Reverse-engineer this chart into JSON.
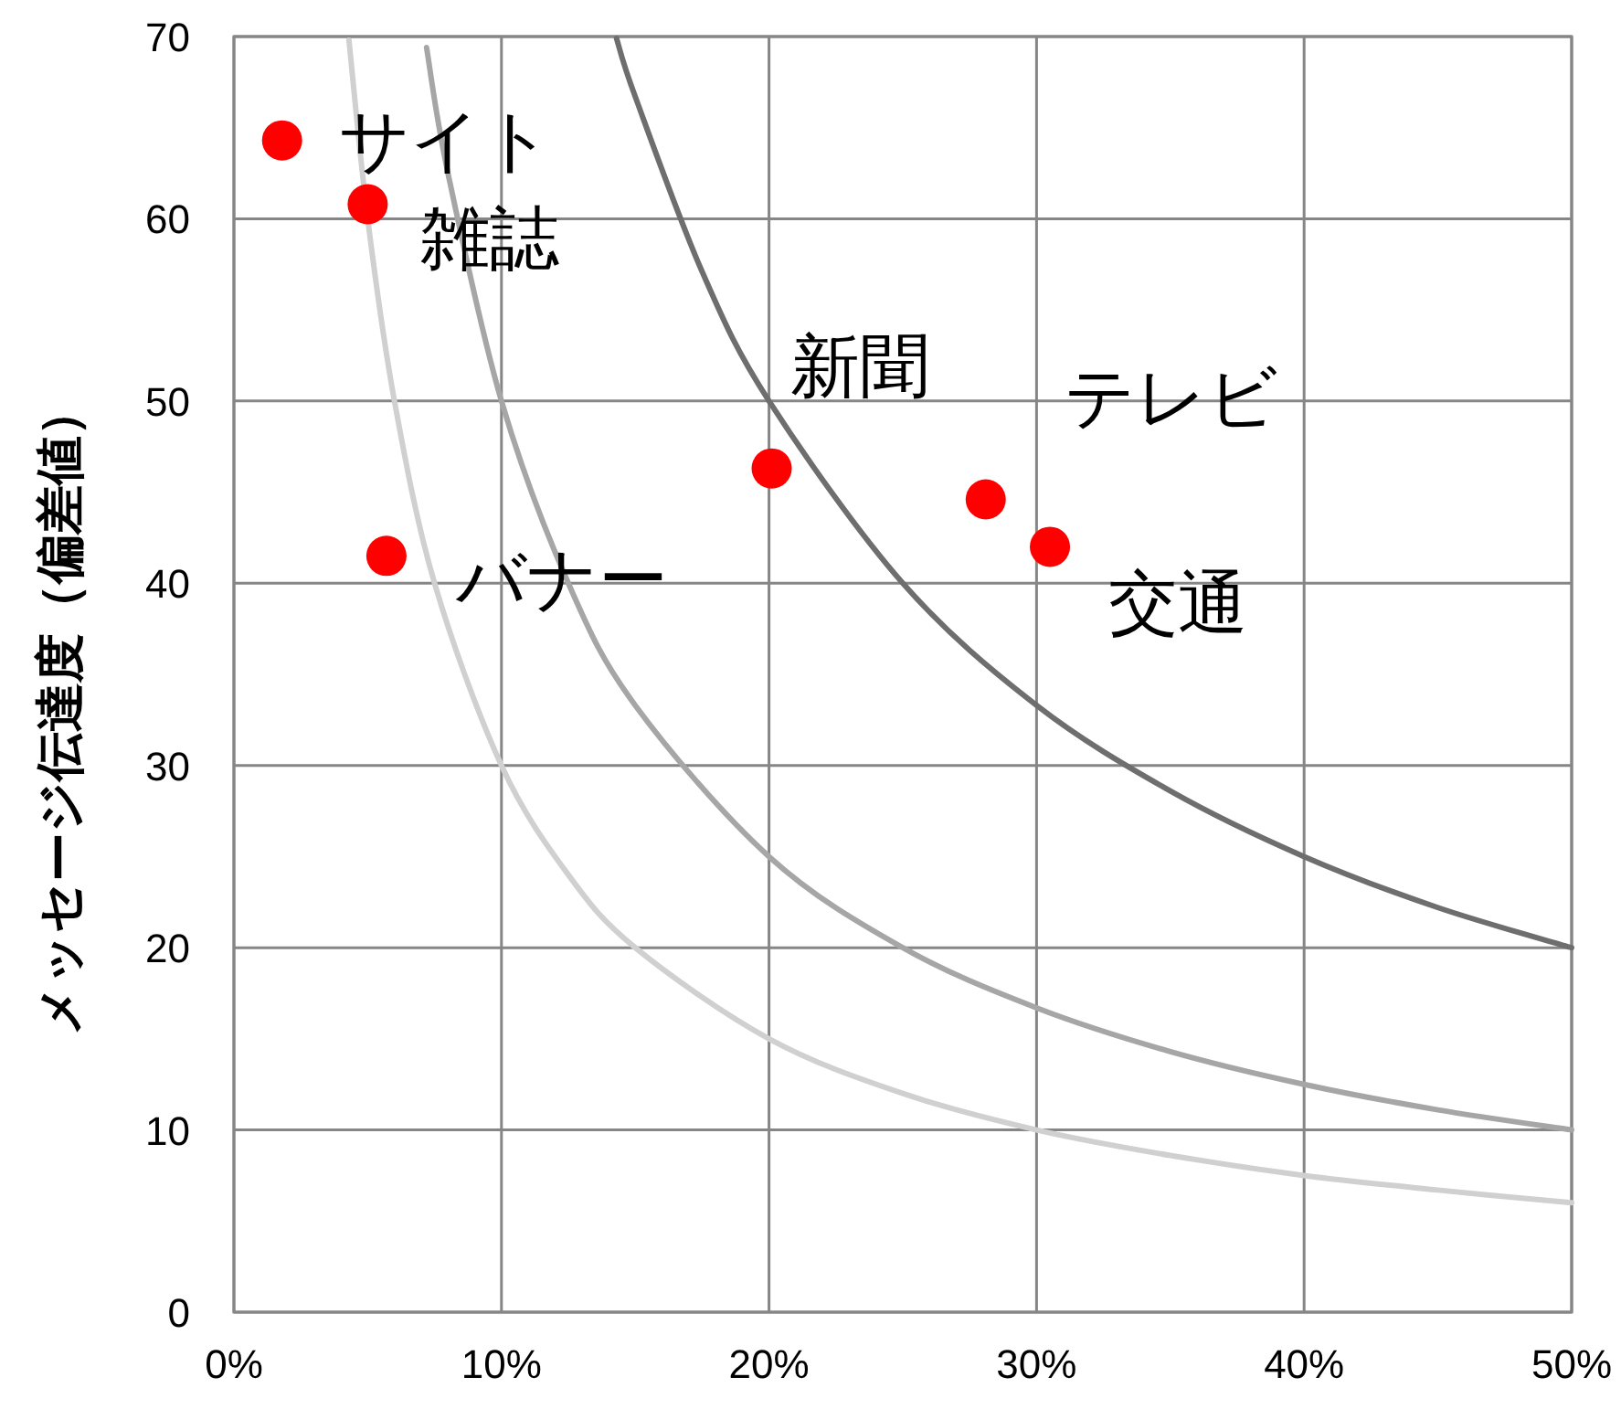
{
  "chart_data": {
    "type": "scatter",
    "ylabel": "メッセージ伝達度（偏差値）",
    "xlim": [
      0,
      50
    ],
    "ylim": [
      0,
      70
    ],
    "xticks": [
      {
        "value": 0,
        "label": "0%"
      },
      {
        "value": 10,
        "label": "10%"
      },
      {
        "value": 20,
        "label": "20%"
      },
      {
        "value": 30,
        "label": "30%"
      },
      {
        "value": 40,
        "label": "40%"
      },
      {
        "value": 50,
        "label": "50%"
      }
    ],
    "yticks": [
      0,
      10,
      20,
      30,
      40,
      50,
      60,
      70
    ],
    "grid": true,
    "series": [
      {
        "type": "line",
        "color": "#d0d0d0",
        "x": [
          4.3,
          5,
          6,
          7.5,
          10,
          12.5,
          15,
          20,
          25,
          30,
          35,
          40,
          45,
          50
        ],
        "values": [
          69.8,
          60,
          50,
          40,
          30,
          24,
          20,
          15,
          12,
          10,
          8.6,
          7.5,
          6.7,
          6
        ]
      },
      {
        "type": "line",
        "color": "#a6a6a6",
        "x": [
          7.2,
          8,
          10,
          12.5,
          15,
          20,
          25,
          30,
          35,
          40,
          45,
          50
        ],
        "values": [
          69.4,
          62.5,
          50,
          40,
          33.3,
          25,
          20,
          16.7,
          14.3,
          12.5,
          11.1,
          10
        ]
      },
      {
        "type": "line",
        "color": "#6e6e6e",
        "x": [
          14.3,
          15,
          17.5,
          20,
          25,
          30,
          35,
          40,
          45,
          50
        ],
        "values": [
          69.9,
          66.7,
          57.1,
          50,
          40,
          33.3,
          28.6,
          25,
          22.2,
          20
        ]
      },
      {
        "name": "サイト",
        "marker": "circle",
        "color": "#ff0000",
        "x": [
          1.8
        ],
        "values": [
          64.3
        ]
      },
      {
        "name": "雑誌",
        "marker": "circle",
        "color": "#ff0000",
        "x": [
          5.0
        ],
        "values": [
          60.8
        ]
      },
      {
        "name": "バナー",
        "marker": "circle",
        "color": "#ff0000",
        "x": [
          5.7
        ],
        "values": [
          41.5
        ]
      },
      {
        "name": "新聞",
        "marker": "circle",
        "color": "#ff0000",
        "x": [
          20.1
        ],
        "values": [
          46.3
        ]
      },
      {
        "name": "テレビ",
        "marker": "circle",
        "color": "#ff0000",
        "x": [
          28.1
        ],
        "values": [
          44.6
        ]
      },
      {
        "name": "交通",
        "marker": "circle",
        "color": "#ff0000",
        "x": [
          30.5
        ],
        "values": [
          42.0
        ]
      }
    ]
  }
}
